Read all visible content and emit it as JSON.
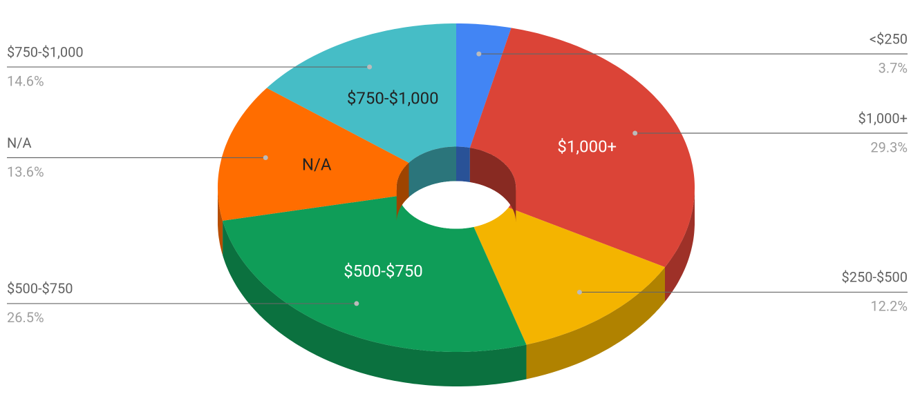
{
  "chart_data": {
    "type": "pie",
    "donut": true,
    "three_d": true,
    "categories": [
      "<$250",
      "$1,000+",
      "$250-$500",
      "$500-$750",
      "N/A",
      "$750-$1,000"
    ],
    "values": [
      3.7,
      29.3,
      12.2,
      26.5,
      13.6,
      14.6
    ],
    "value_labels": [
      "3.7%",
      "29.3%",
      "12.2%",
      "26.5%",
      "13.6%",
      "14.6%"
    ],
    "colors": [
      "#4285f4",
      "#db4437",
      "#f4b400",
      "#0f9d58",
      "#ff6d00",
      "#46bdc6"
    ]
  }
}
